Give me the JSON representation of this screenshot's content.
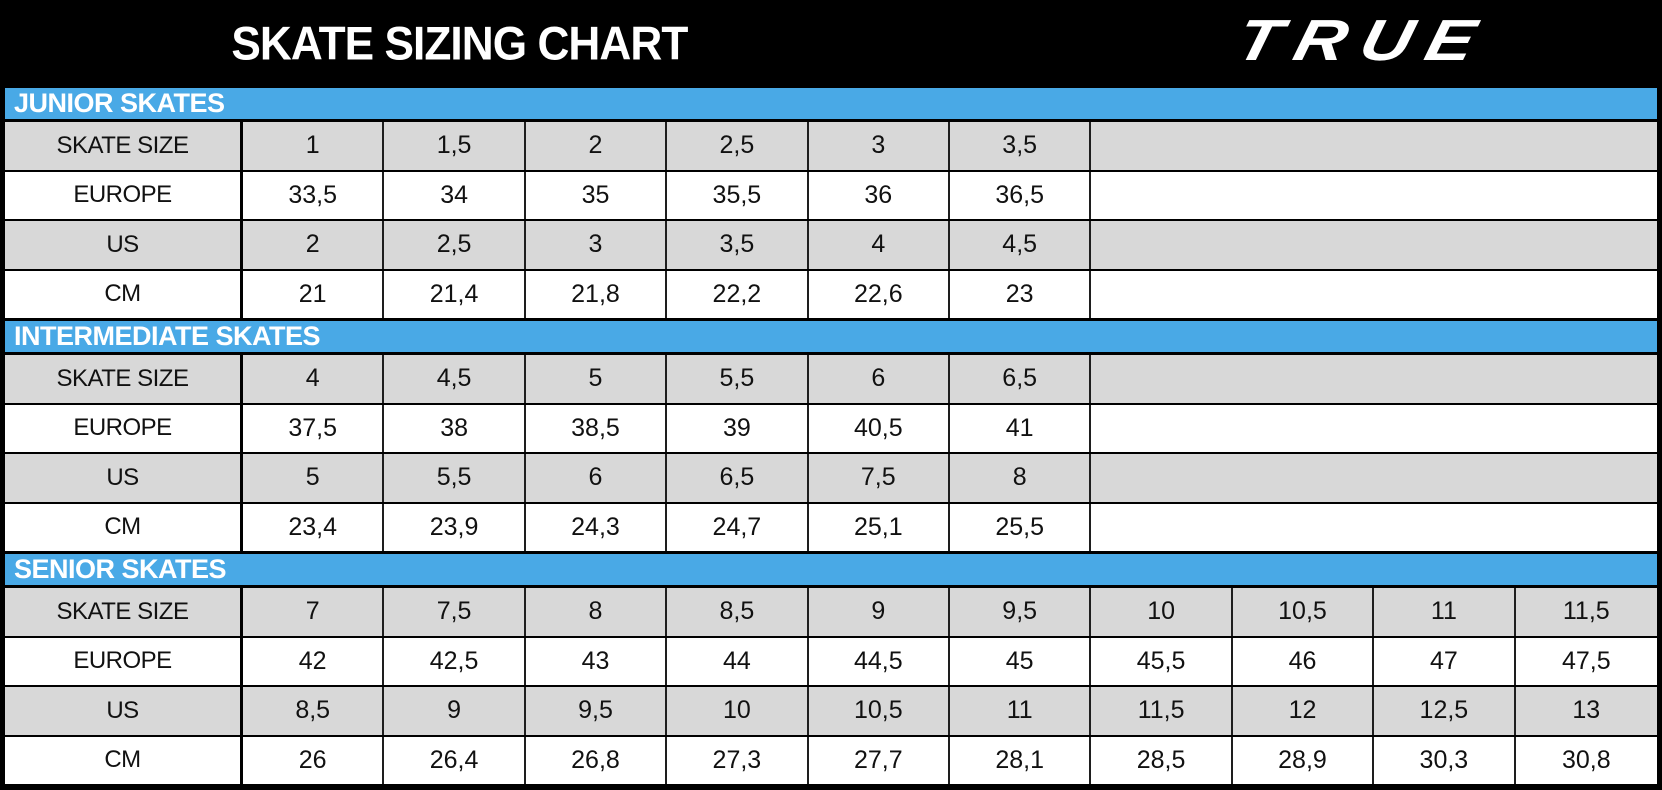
{
  "header": {
    "title": "SKATE SIZING CHART",
    "logo_text": "TRUE"
  },
  "colors": {
    "accent_blue": "#49a9e6",
    "row_gray": "#d8d8d8",
    "bar_black": "#000000",
    "title_text": "#ffffff"
  },
  "table": {
    "row_labels": [
      "SKATE SIZE",
      "EUROPE",
      "US",
      "CM"
    ],
    "total_columns": 10,
    "sections": [
      {
        "title": "JUNIOR SKATES",
        "rows": [
          [
            "1",
            "1,5",
            "2",
            "2,5",
            "3",
            "3,5"
          ],
          [
            "33,5",
            "34",
            "35",
            "35,5",
            "36",
            "36,5"
          ],
          [
            "2",
            "2,5",
            "3",
            "3,5",
            "4",
            "4,5"
          ],
          [
            "21",
            "21,4",
            "21,8",
            "22,2",
            "22,6",
            "23"
          ]
        ]
      },
      {
        "title": "INTERMEDIATE SKATES",
        "rows": [
          [
            "4",
            "4,5",
            "5",
            "5,5",
            "6",
            "6,5"
          ],
          [
            "37,5",
            "38",
            "38,5",
            "39",
            "40,5",
            "41"
          ],
          [
            "5",
            "5,5",
            "6",
            "6,5",
            "7,5",
            "8"
          ],
          [
            "23,4",
            "23,9",
            "24,3",
            "24,7",
            "25,1",
            "25,5"
          ]
        ]
      },
      {
        "title": "SENIOR SKATES",
        "rows": [
          [
            "7",
            "7,5",
            "8",
            "8,5",
            "9",
            "9,5",
            "10",
            "10,5",
            "11",
            "11,5"
          ],
          [
            "42",
            "42,5",
            "43",
            "44",
            "44,5",
            "45",
            "45,5",
            "46",
            "47",
            "47,5"
          ],
          [
            "8,5",
            "9",
            "9,5",
            "10",
            "10,5",
            "11",
            "11,5",
            "12",
            "12,5",
            "13"
          ],
          [
            "26",
            "26,4",
            "26,8",
            "27,3",
            "27,7",
            "28,1",
            "28,5",
            "28,9",
            "30,3",
            "30,8"
          ]
        ]
      }
    ]
  }
}
